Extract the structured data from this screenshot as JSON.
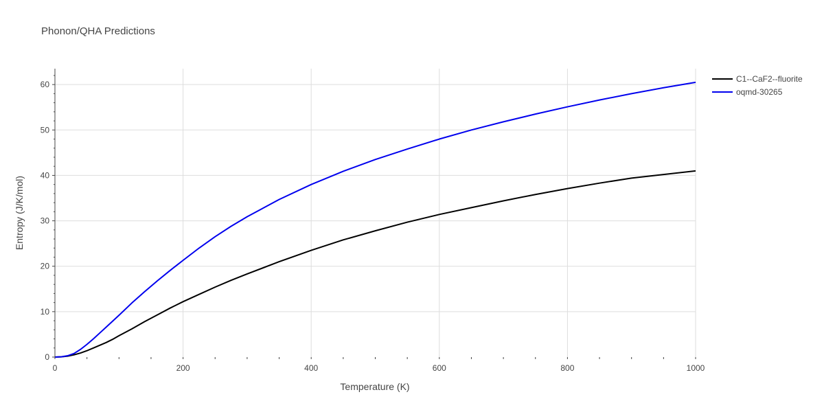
{
  "chart_data": {
    "type": "line",
    "title": "Phonon/QHA Predictions",
    "xlabel": "Temperature (K)",
    "ylabel": "Entropy (J/K/mol)",
    "xlim": [
      0,
      1000
    ],
    "ylim": [
      0,
      63.5
    ],
    "xticks": [
      0,
      200,
      400,
      600,
      800,
      1000
    ],
    "yticks": [
      0,
      10,
      20,
      30,
      40,
      50,
      60
    ],
    "grid": true,
    "legend_position": "top-right",
    "series": [
      {
        "name": "C1--CaF2--fluorite",
        "color": "#000000",
        "x": [
          0,
          10,
          20,
          30,
          40,
          50,
          60,
          70,
          80,
          90,
          100,
          120,
          140,
          160,
          180,
          200,
          225,
          250,
          275,
          300,
          350,
          400,
          450,
          500,
          550,
          600,
          650,
          700,
          750,
          800,
          850,
          900,
          950,
          1000
        ],
        "y": [
          0,
          0.05,
          0.2,
          0.5,
          0.9,
          1.4,
          2.0,
          2.6,
          3.2,
          3.9,
          4.7,
          6.2,
          7.8,
          9.3,
          10.8,
          12.2,
          13.8,
          15.4,
          16.9,
          18.3,
          21.0,
          23.5,
          25.8,
          27.8,
          29.7,
          31.4,
          32.9,
          34.4,
          35.8,
          37.1,
          38.3,
          39.4,
          40.2,
          41.0
        ]
      },
      {
        "name": "oqmd-30265",
        "color": "#0000ee",
        "x": [
          0,
          10,
          20,
          30,
          40,
          50,
          60,
          70,
          80,
          90,
          100,
          120,
          140,
          160,
          180,
          200,
          225,
          250,
          275,
          300,
          350,
          400,
          450,
          500,
          550,
          600,
          650,
          700,
          750,
          800,
          850,
          900,
          950,
          1000
        ],
        "y": [
          0,
          0.05,
          0.3,
          0.8,
          1.7,
          2.8,
          4.0,
          5.3,
          6.6,
          7.9,
          9.2,
          11.9,
          14.4,
          16.8,
          19.1,
          21.3,
          24.0,
          26.5,
          28.8,
          30.9,
          34.7,
          38.0,
          40.9,
          43.5,
          45.8,
          48.0,
          50.0,
          51.8,
          53.5,
          55.1,
          56.6,
          58.0,
          59.3,
          60.5
        ]
      }
    ]
  }
}
